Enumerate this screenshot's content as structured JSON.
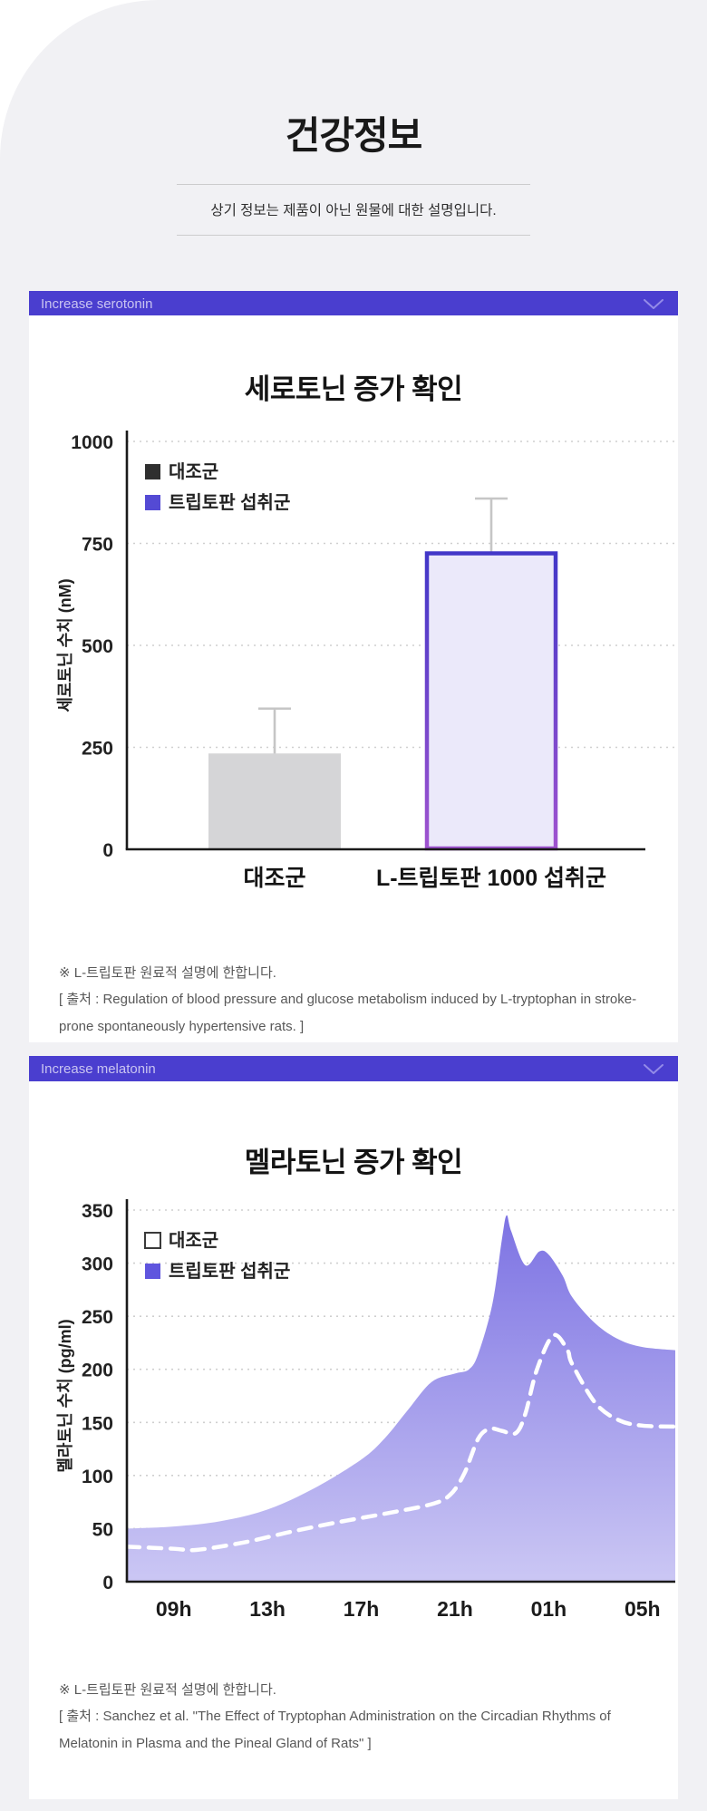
{
  "page": {
    "title": "건강정보",
    "subtitle": "상기 정보는 제품이 아닌 원물에 대한 설명입니다."
  },
  "sections": [
    {
      "header": "Increase serotonin",
      "title": "세로토닌 증가 확인",
      "footnote": [
        "※ L-트립토판 원료적 설명에 한합니다.",
        "[ 출처 : Regulation of blood pressure and glucose metabolism induced by L-tryptophan in stroke-prone spontaneously hypertensive rats. ]"
      ]
    },
    {
      "header": "Increase melatonin",
      "title": "멜라토닌 증가 확인",
      "footnote": [
        "※ L-트립토판 원료적 설명에 한합니다.",
        "[ 출처 : Sanchez et al. \"The Effect of Tryptophan Administration on the Circadian Rhythms of Melatonin in Plasma and the Pineal Gland of Rats\" ]"
      ]
    }
  ],
  "colors": {
    "page_background": "#f1f1f4",
    "card_background": "#ffffff",
    "accordion_bar": "#4a3ecf",
    "accordion_text": "#c9c4f1",
    "chevron": "#938be8",
    "gridline": "#cfcfcf",
    "axis": "#1a1a1a",
    "control_bar": "#d5d5d7",
    "error_bar": "#c6c6c6",
    "tryptophan_bar_fill": "#ebe9fa",
    "tryptophan_bar_border_top": "#4237c8",
    "tryptophan_bar_border_bottom": "#9f53cf",
    "area_top": "#7d73e3",
    "area_bottom": "#cbc7f4",
    "dashed_line": "#ffffff"
  },
  "chart_data": [
    {
      "type": "bar",
      "title": "세로토닌 증가 확인",
      "xlabel": "",
      "ylabel": "세로토닌 수치 (nM)",
      "ylim": [
        0,
        1000
      ],
      "yticks": [
        0,
        250,
        500,
        750,
        1000
      ],
      "grid": "dotted-horizontal",
      "legend_position": "top-left",
      "legend": [
        {
          "label": "대조군",
          "swatch": "filled",
          "color": "#2f2f2f"
        },
        {
          "label": "트립토판 섭취군",
          "swatch": "filled",
          "color": "#544ad4"
        }
      ],
      "categories": [
        "대조군",
        "L-트립토판 1000 섭취군"
      ],
      "values": [
        235,
        730
      ],
      "error_high": [
        345,
        860
      ]
    },
    {
      "type": "area",
      "title": "멜라토닌 증가 확인",
      "xlabel": "",
      "ylabel": "멜라토닌 수치 (pg/ml)",
      "ylim": [
        0,
        350
      ],
      "yticks": [
        0,
        50,
        100,
        150,
        200,
        250,
        300,
        350
      ],
      "grid": "dotted-horizontal",
      "legend_position": "top-left",
      "x_axis": {
        "tick_labels": [
          "09h",
          "13h",
          "17h",
          "21h",
          "01h",
          "05h"
        ],
        "tick_hours": [
          9,
          13,
          17,
          21,
          25,
          29
        ],
        "range_hours": [
          7,
          30.4
        ],
        "note": "hours of day, 25=01h and 29=05h next day"
      },
      "series": [
        {
          "name": "대조군",
          "style": "dashed-line",
          "color": "#ffffff",
          "points_hour_value": [
            [
              7,
              33
            ],
            [
              9,
              31
            ],
            [
              10,
              30
            ],
            [
              12,
              37
            ],
            [
              14,
              47
            ],
            [
              16,
              56
            ],
            [
              18,
              64
            ],
            [
              20,
              73
            ],
            [
              20.8,
              82
            ],
            [
              21.4,
              102
            ],
            [
              22,
              135
            ],
            [
              22.5,
              144
            ],
            [
              23,
              142
            ],
            [
              23.6,
              140
            ],
            [
              24,
              158
            ],
            [
              24.5,
              200
            ],
            [
              25.2,
              232
            ],
            [
              25.8,
              218
            ],
            [
              26,
              205
            ],
            [
              27,
              168
            ],
            [
              28,
              152
            ],
            [
              29,
              147
            ],
            [
              30.4,
              146
            ]
          ]
        },
        {
          "name": "트립토판 섭취군",
          "style": "area",
          "color_top": "#7d73e3",
          "color_bottom": "#cbc7f4",
          "points_hour_value": [
            [
              7,
              50
            ],
            [
              9,
              52
            ],
            [
              11,
              57
            ],
            [
              13,
              68
            ],
            [
              15,
              88
            ],
            [
              17,
              115
            ],
            [
              18,
              135
            ],
            [
              19,
              162
            ],
            [
              20,
              188
            ],
            [
              21,
              196
            ],
            [
              21.6,
              200
            ],
            [
              22,
              215
            ],
            [
              22.6,
              262
            ],
            [
              23,
              322
            ],
            [
              23.2,
              345
            ],
            [
              23.4,
              330
            ],
            [
              24,
              298
            ],
            [
              24.6,
              311
            ],
            [
              25,
              308
            ],
            [
              25.6,
              288
            ],
            [
              26,
              268
            ],
            [
              27,
              243
            ],
            [
              28,
              228
            ],
            [
              29,
              221
            ],
            [
              30.4,
              218
            ]
          ]
        }
      ]
    }
  ]
}
